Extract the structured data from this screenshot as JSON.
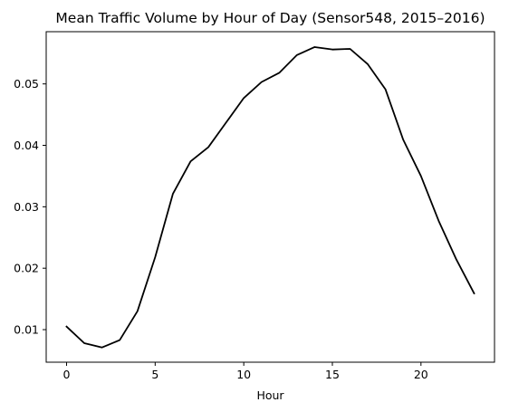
{
  "chart_data": {
    "type": "line",
    "title": "Mean Traffic Volume by Hour of Day (Sensor548, 2015–2016)",
    "xlabel": "Hour",
    "ylabel": "",
    "xlim": [
      -1.15,
      24.15
    ],
    "ylim": [
      0.0047,
      0.0585
    ],
    "x_ticks": [
      0,
      5,
      10,
      15,
      20
    ],
    "y_ticks": [
      0.01,
      0.02,
      0.03,
      0.04,
      0.05
    ],
    "grid": false,
    "legend": "none",
    "series": [
      {
        "color": "#000000",
        "x": [
          0,
          1,
          2,
          3,
          4,
          5,
          6,
          7,
          8,
          9,
          10,
          11,
          12,
          13,
          14,
          15,
          16,
          17,
          18,
          19,
          20,
          21,
          22,
          23
        ],
        "y": [
          0.0105,
          0.0078,
          0.0071,
          0.0083,
          0.013,
          0.0218,
          0.0321,
          0.0374,
          0.0397,
          0.0437,
          0.0477,
          0.0503,
          0.0518,
          0.0547,
          0.056,
          0.0556,
          0.0557,
          0.0532,
          0.0491,
          0.0409,
          0.035,
          0.0277,
          0.0214,
          0.0159
        ]
      }
    ]
  }
}
